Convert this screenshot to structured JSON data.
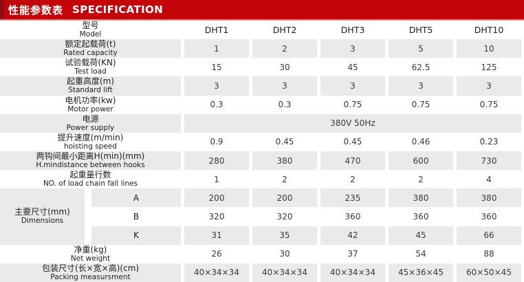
{
  "header": {
    "zh": "性能参数表",
    "en": "SPECIFICATION"
  },
  "colors": {
    "header_bg": "#C30409",
    "header_stripe": "#8E0E12",
    "header_underline": "#E98E90",
    "row_shade": "#EAEAEA"
  },
  "table": {
    "model_row": {
      "zh": "型号",
      "en": "Model",
      "models": [
        "DHT1",
        "DHT2",
        "DHT3",
        "DHT5",
        "DHT10"
      ]
    },
    "rows": [
      {
        "zh": "额定起载荷(t)",
        "en": "Rated capacity",
        "values": [
          "1",
          "2",
          "3",
          "5",
          "10"
        ],
        "shade": true
      },
      {
        "zh": "试验载荷(KN)",
        "en": "Test load",
        "values": [
          "15",
          "30",
          "45",
          "62.5",
          "125"
        ],
        "shade": false
      },
      {
        "zh": "起重高度(m)",
        "en": "Standard lift",
        "values": [
          "3",
          "3",
          "3",
          "3",
          "3"
        ],
        "shade": true
      },
      {
        "zh": "电机功率(kw)",
        "en": "Motor power",
        "values": [
          "0.3",
          "0.3",
          "0.75",
          "0.75",
          "0.75"
        ],
        "shade": false
      },
      {
        "zh": "电源",
        "en": "Power supply",
        "span_value": "380V  50Hz",
        "shade": true
      },
      {
        "zh": "提升速度(m/min)",
        "en": "hoisting speed",
        "values": [
          "0.9",
          "0.45",
          "0.45",
          "0.46",
          "0.23"
        ],
        "shade": false
      },
      {
        "zh": "两钩间最小距离H(min)(mm)",
        "en": "H.mindistance between hooks",
        "values": [
          "280",
          "380",
          "470",
          "600",
          "730"
        ],
        "shade": true
      },
      {
        "zh": "起重量行数",
        "en": "NO. of load chain fall lines",
        "values": [
          "1",
          "2",
          "2",
          "2",
          "4"
        ],
        "shade": false
      }
    ],
    "dimensions": {
      "zh": "主要尺寸(mm)",
      "en": "Dimensions",
      "sub_rows": [
        {
          "key": "A",
          "values": [
            "200",
            "200",
            "235",
            "380",
            "380"
          ],
          "shade": true
        },
        {
          "key": "B",
          "values": [
            "320",
            "320",
            "360",
            "360",
            "360"
          ],
          "shade": false
        },
        {
          "key": "K",
          "values": [
            "31",
            "35",
            "42",
            "45",
            "66"
          ],
          "shade": true
        }
      ]
    },
    "tail_rows": [
      {
        "zh": "净重(kg)",
        "en": "Net weight",
        "values": [
          "26",
          "30",
          "37",
          "54",
          "88"
        ],
        "shade": false
      },
      {
        "zh": "包装尺寸(长×宽×高)(cm)",
        "en": "Packing measursment",
        "values": [
          "40×34×34",
          "40×34×34",
          "40×34×34",
          "45×36×45",
          "60×50×45"
        ],
        "shade": true
      }
    ]
  },
  "chart_data": {
    "type": "table",
    "title": "性能参数表 SPECIFICATION",
    "columns": [
      "型号 Model",
      "DHT1",
      "DHT2",
      "DHT3",
      "DHT5",
      "DHT10"
    ],
    "rows": [
      [
        "额定起载荷(t) Rated capacity",
        "1",
        "2",
        "3",
        "5",
        "10"
      ],
      [
        "试验载荷(KN) Test load",
        "15",
        "30",
        "45",
        "62.5",
        "125"
      ],
      [
        "起重高度(m) Standard lift",
        "3",
        "3",
        "3",
        "3",
        "3"
      ],
      [
        "电机功率(kw) Motor power",
        "0.3",
        "0.3",
        "0.75",
        "0.75",
        "0.75"
      ],
      [
        "电源 Power supply",
        "380V 50Hz",
        "380V 50Hz",
        "380V 50Hz",
        "380V 50Hz",
        "380V 50Hz"
      ],
      [
        "提升速度(m/min) hoisting speed",
        "0.9",
        "0.45",
        "0.45",
        "0.46",
        "0.23"
      ],
      [
        "两钩间最小距离H(min)(mm) H.mindistance between hooks",
        "280",
        "380",
        "470",
        "600",
        "730"
      ],
      [
        "起重量行数 NO. of load chain fall lines",
        "1",
        "2",
        "2",
        "2",
        "4"
      ],
      [
        "主要尺寸(mm) Dimensions A",
        "200",
        "200",
        "235",
        "380",
        "380"
      ],
      [
        "主要尺寸(mm) Dimensions B",
        "320",
        "320",
        "360",
        "360",
        "360"
      ],
      [
        "主要尺寸(mm) Dimensions K",
        "31",
        "35",
        "42",
        "45",
        "66"
      ],
      [
        "净重(kg) Net weight",
        "26",
        "30",
        "37",
        "54",
        "88"
      ],
      [
        "包装尺寸(长×宽×高)(cm) Packing measursment",
        "40×34×34",
        "40×34×34",
        "40×34×34",
        "45×36×45",
        "60×50×45"
      ]
    ]
  }
}
